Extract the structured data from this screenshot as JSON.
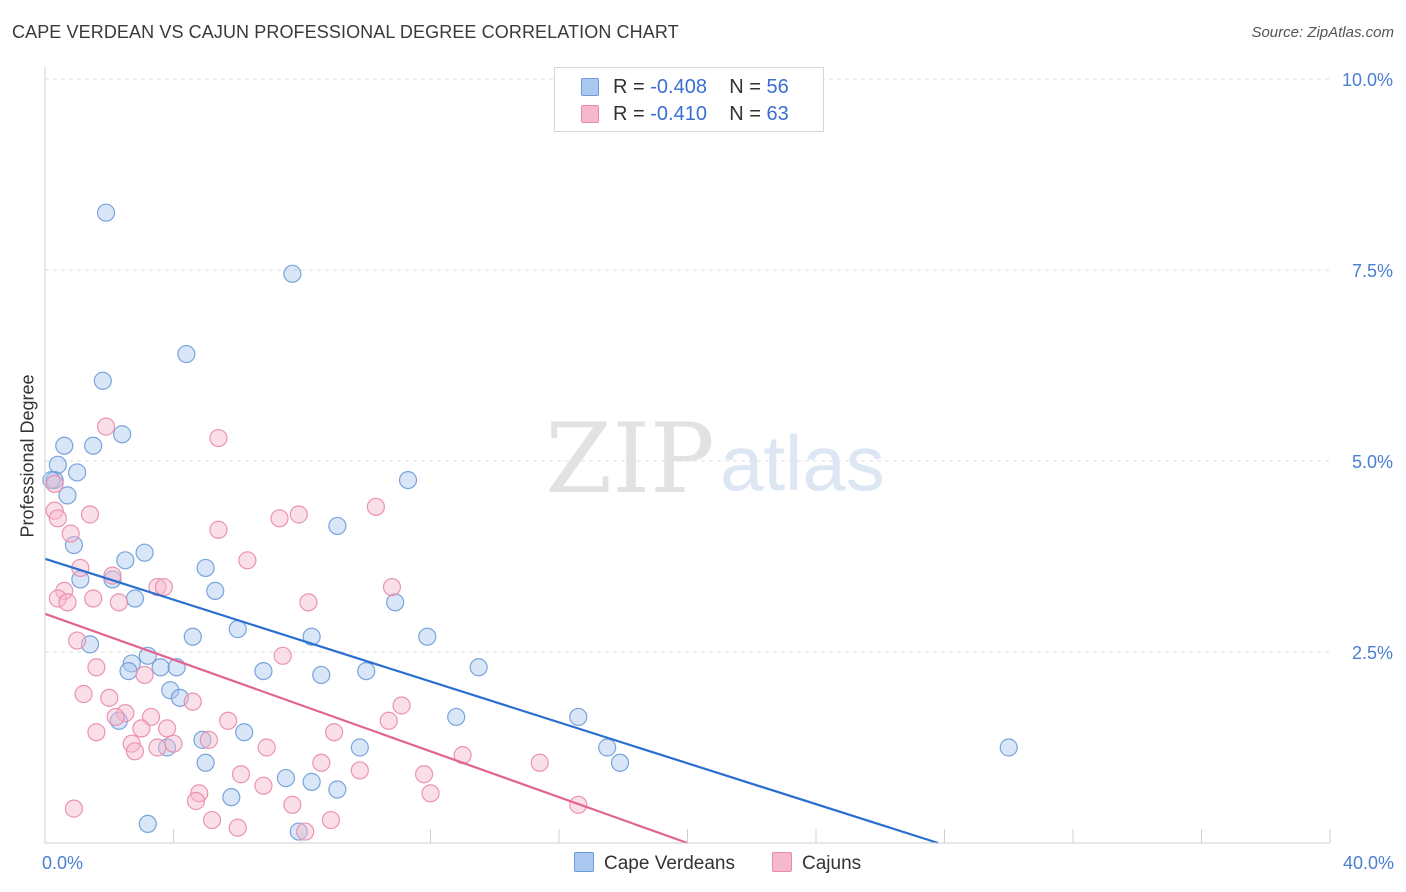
{
  "title": "CAPE VERDEAN VS CAJUN PROFESSIONAL DEGREE CORRELATION CHART",
  "source": "Source: ZipAtlas.com",
  "watermark": {
    "zip": "ZIP",
    "atlas": "atlas"
  },
  "legend": {
    "rows": [
      {
        "r_label": "R = ",
        "r_value": "-0.408",
        "n_label": "N = ",
        "n_value": "56"
      },
      {
        "r_label": "R = ",
        "r_value": "-0.410",
        "n_label": "N = ",
        "n_value": "63"
      }
    ]
  },
  "colors": {
    "blue_fill": "#aac8f0",
    "blue_stroke": "#6d9bd8",
    "blue_line": "#2a6fd0",
    "pink_fill": "#f6b8cc",
    "pink_stroke": "#e98aa8",
    "pink_line": "#e0648f",
    "axis_text": "#4a7fd0"
  },
  "chart_data": {
    "type": "scatter",
    "title": "CAPE VERDEAN VS CAJUN PROFESSIONAL DEGREE CORRELATION CHART",
    "xlabel": "",
    "ylabel": "Professional Degree",
    "xlim": [
      0,
      40
    ],
    "ylim": [
      0,
      10
    ],
    "x_tick_labels": [
      "0.0%",
      "40.0%"
    ],
    "y_ticks": [
      2.5,
      5.0,
      7.5,
      10.0
    ],
    "y_tick_labels": [
      "2.5%",
      "5.0%",
      "7.5%",
      "10.0%"
    ],
    "grid": true,
    "series": [
      {
        "name": "Cape Verdeans",
        "r": -0.408,
        "n": 56,
        "trend": {
          "x": [
            0,
            27.8
          ],
          "y": [
            3.72,
            0.0
          ]
        },
        "points": [
          {
            "x": 1.9,
            "y": 8.25
          },
          {
            "x": 7.7,
            "y": 7.45
          },
          {
            "x": 4.4,
            "y": 6.4
          },
          {
            "x": 1.8,
            "y": 6.05
          },
          {
            "x": 2.4,
            "y": 5.35
          },
          {
            "x": 0.6,
            "y": 5.2
          },
          {
            "x": 1.5,
            "y": 5.2
          },
          {
            "x": 0.4,
            "y": 4.95
          },
          {
            "x": 1.0,
            "y": 4.85
          },
          {
            "x": 0.3,
            "y": 4.75
          },
          {
            "x": 0.7,
            "y": 4.55
          },
          {
            "x": 11.3,
            "y": 4.75
          },
          {
            "x": 9.1,
            "y": 4.15
          },
          {
            "x": 0.9,
            "y": 3.9
          },
          {
            "x": 3.1,
            "y": 3.8
          },
          {
            "x": 2.5,
            "y": 3.7
          },
          {
            "x": 5.0,
            "y": 3.6
          },
          {
            "x": 1.1,
            "y": 3.45
          },
          {
            "x": 2.1,
            "y": 3.45
          },
          {
            "x": 5.3,
            "y": 3.3
          },
          {
            "x": 2.8,
            "y": 3.2
          },
          {
            "x": 10.9,
            "y": 3.15
          },
          {
            "x": 6.0,
            "y": 2.8
          },
          {
            "x": 4.6,
            "y": 2.7
          },
          {
            "x": 8.3,
            "y": 2.7
          },
          {
            "x": 11.9,
            "y": 2.7
          },
          {
            "x": 1.4,
            "y": 2.6
          },
          {
            "x": 3.2,
            "y": 2.45
          },
          {
            "x": 2.7,
            "y": 2.35
          },
          {
            "x": 3.6,
            "y": 2.3
          },
          {
            "x": 4.1,
            "y": 2.3
          },
          {
            "x": 13.5,
            "y": 2.3
          },
          {
            "x": 2.6,
            "y": 2.25
          },
          {
            "x": 6.8,
            "y": 2.25
          },
          {
            "x": 10.0,
            "y": 2.25
          },
          {
            "x": 8.6,
            "y": 2.2
          },
          {
            "x": 3.9,
            "y": 2.0
          },
          {
            "x": 4.2,
            "y": 1.9
          },
          {
            "x": 12.8,
            "y": 1.65
          },
          {
            "x": 16.6,
            "y": 1.65
          },
          {
            "x": 2.3,
            "y": 1.6
          },
          {
            "x": 6.2,
            "y": 1.45
          },
          {
            "x": 4.9,
            "y": 1.35
          },
          {
            "x": 3.8,
            "y": 1.25
          },
          {
            "x": 17.5,
            "y": 1.25
          },
          {
            "x": 9.8,
            "y": 1.25
          },
          {
            "x": 30.0,
            "y": 1.25
          },
          {
            "x": 5.0,
            "y": 1.05
          },
          {
            "x": 17.9,
            "y": 1.05
          },
          {
            "x": 7.5,
            "y": 0.85
          },
          {
            "x": 8.3,
            "y": 0.8
          },
          {
            "x": 9.1,
            "y": 0.7
          },
          {
            "x": 5.8,
            "y": 0.6
          },
          {
            "x": 3.2,
            "y": 0.25
          },
          {
            "x": 7.9,
            "y": 0.15
          },
          {
            "x": 0.2,
            "y": 4.75
          }
        ]
      },
      {
        "name": "Cajuns",
        "r": -0.41,
        "n": 63,
        "trend": {
          "x": [
            0,
            20.0
          ],
          "y": [
            3.0,
            0.0
          ]
        },
        "points": [
          {
            "x": 1.9,
            "y": 5.45
          },
          {
            "x": 5.4,
            "y": 5.3
          },
          {
            "x": 0.3,
            "y": 4.7
          },
          {
            "x": 0.3,
            "y": 4.35
          },
          {
            "x": 10.3,
            "y": 4.4
          },
          {
            "x": 0.4,
            "y": 4.25
          },
          {
            "x": 1.4,
            "y": 4.3
          },
          {
            "x": 7.3,
            "y": 4.25
          },
          {
            "x": 7.9,
            "y": 4.3
          },
          {
            "x": 5.4,
            "y": 4.1
          },
          {
            "x": 0.8,
            "y": 4.05
          },
          {
            "x": 6.3,
            "y": 3.7
          },
          {
            "x": 1.1,
            "y": 3.6
          },
          {
            "x": 2.1,
            "y": 3.5
          },
          {
            "x": 3.5,
            "y": 3.35
          },
          {
            "x": 3.7,
            "y": 3.35
          },
          {
            "x": 10.8,
            "y": 3.35
          },
          {
            "x": 0.6,
            "y": 3.3
          },
          {
            "x": 0.4,
            "y": 3.2
          },
          {
            "x": 1.5,
            "y": 3.2
          },
          {
            "x": 0.7,
            "y": 3.15
          },
          {
            "x": 2.3,
            "y": 3.15
          },
          {
            "x": 8.2,
            "y": 3.15
          },
          {
            "x": 1.0,
            "y": 2.65
          },
          {
            "x": 7.4,
            "y": 2.45
          },
          {
            "x": 1.6,
            "y": 2.3
          },
          {
            "x": 3.1,
            "y": 2.2
          },
          {
            "x": 1.2,
            "y": 1.95
          },
          {
            "x": 2.0,
            "y": 1.9
          },
          {
            "x": 4.6,
            "y": 1.85
          },
          {
            "x": 11.1,
            "y": 1.8
          },
          {
            "x": 3.3,
            "y": 1.65
          },
          {
            "x": 2.5,
            "y": 1.7
          },
          {
            "x": 2.2,
            "y": 1.65
          },
          {
            "x": 10.7,
            "y": 1.6
          },
          {
            "x": 5.7,
            "y": 1.6
          },
          {
            "x": 3.0,
            "y": 1.5
          },
          {
            "x": 3.8,
            "y": 1.5
          },
          {
            "x": 1.6,
            "y": 1.45
          },
          {
            "x": 9.0,
            "y": 1.45
          },
          {
            "x": 5.1,
            "y": 1.35
          },
          {
            "x": 2.7,
            "y": 1.3
          },
          {
            "x": 3.5,
            "y": 1.25
          },
          {
            "x": 4.0,
            "y": 1.3
          },
          {
            "x": 6.9,
            "y": 1.25
          },
          {
            "x": 2.8,
            "y": 1.2
          },
          {
            "x": 13.0,
            "y": 1.15
          },
          {
            "x": 8.6,
            "y": 1.05
          },
          {
            "x": 15.4,
            "y": 1.05
          },
          {
            "x": 9.8,
            "y": 0.95
          },
          {
            "x": 6.1,
            "y": 0.9
          },
          {
            "x": 11.8,
            "y": 0.9
          },
          {
            "x": 6.8,
            "y": 0.75
          },
          {
            "x": 4.8,
            "y": 0.65
          },
          {
            "x": 12.0,
            "y": 0.65
          },
          {
            "x": 4.7,
            "y": 0.55
          },
          {
            "x": 7.7,
            "y": 0.5
          },
          {
            "x": 16.6,
            "y": 0.5
          },
          {
            "x": 5.2,
            "y": 0.3
          },
          {
            "x": 8.9,
            "y": 0.3
          },
          {
            "x": 6.0,
            "y": 0.2
          },
          {
            "x": 8.1,
            "y": 0.15
          },
          {
            "x": 0.9,
            "y": 0.45
          }
        ]
      }
    ]
  }
}
